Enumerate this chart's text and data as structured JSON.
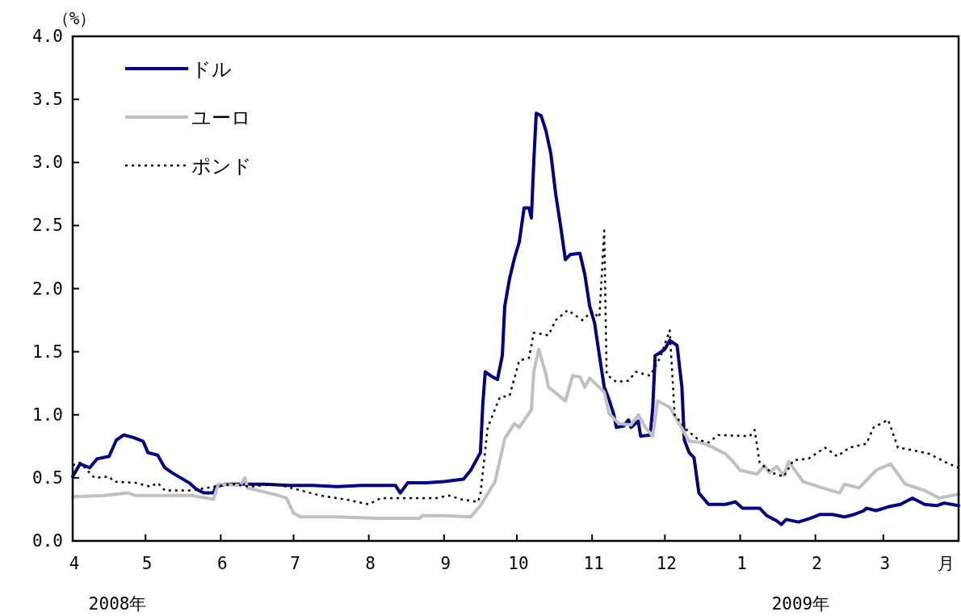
{
  "chart_data": {
    "type": "line",
    "ylabel": "（%）",
    "xlabel": "月",
    "annotations": [
      "2008年",
      "2009年"
    ],
    "xlim": [
      "2008-04-01",
      "2009-04-01"
    ],
    "xticks": [
      {
        "value": "2008-04-01",
        "label": "4"
      },
      {
        "value": "2008-05-01",
        "label": "5"
      },
      {
        "value": "2008-06-01",
        "label": "6"
      },
      {
        "value": "2008-07-01",
        "label": "7"
      },
      {
        "value": "2008-08-01",
        "label": "8"
      },
      {
        "value": "2008-09-01",
        "label": "9"
      },
      {
        "value": "2008-10-01",
        "label": "10"
      },
      {
        "value": "2008-11-01",
        "label": "11"
      },
      {
        "value": "2008-12-01",
        "label": "12"
      },
      {
        "value": "2009-01-01",
        "label": "1"
      },
      {
        "value": "2009-02-01",
        "label": "2"
      },
      {
        "value": "2009-03-01",
        "label": "3"
      }
    ],
    "ylim": [
      0,
      4
    ],
    "yticks": [
      {
        "value": 0,
        "label": "0.0"
      },
      {
        "value": 0.5,
        "label": "0.5"
      },
      {
        "value": 1,
        "label": "1.0"
      },
      {
        "value": 1.5,
        "label": "1.5"
      },
      {
        "value": 2,
        "label": "2.0"
      },
      {
        "value": 2.5,
        "label": "2.5"
      },
      {
        "value": 3,
        "label": "3.0"
      },
      {
        "value": 3.5,
        "label": "3.5"
      },
      {
        "value": 4,
        "label": "4.0"
      }
    ],
    "grid": false,
    "legend": "top left",
    "series": [
      {
        "name": "ドル",
        "color": "#000080",
        "line_style": "solid",
        "x": [
          "2008-04-01",
          "2008-04-04",
          "2008-04-08",
          "2008-04-11",
          "2008-04-16",
          "2008-04-19",
          "2008-04-22",
          "2008-04-26",
          "2008-04-30",
          "2008-05-02",
          "2008-05-06",
          "2008-05-09",
          "2008-05-12",
          "2008-05-19",
          "2008-05-22",
          "2008-05-25",
          "2008-05-29",
          "2008-05-30",
          "2008-06-03",
          "2008-06-09",
          "2008-06-19",
          "2008-06-29",
          "2008-07-09",
          "2008-07-19",
          "2008-07-29",
          "2008-08-12",
          "2008-08-14",
          "2008-08-17",
          "2008-08-25",
          "2008-09-01",
          "2008-09-09",
          "2008-09-12",
          "2008-09-16",
          "2008-09-17",
          "2008-09-18",
          "2008-09-21",
          "2008-09-23",
          "2008-09-25",
          "2008-09-26",
          "2008-09-28",
          "2008-09-30",
          "2008-10-02",
          "2008-10-04",
          "2008-10-06",
          "2008-10-07",
          "2008-10-08",
          "2008-10-09",
          "2008-10-11",
          "2008-10-13",
          "2008-10-15",
          "2008-10-17",
          "2008-10-19",
          "2008-10-21",
          "2008-10-23",
          "2008-10-27",
          "2008-10-29",
          "2008-10-31",
          "2008-11-02",
          "2008-11-04",
          "2008-11-06",
          "2008-11-08",
          "2008-11-10",
          "2008-11-11",
          "2008-11-14",
          "2008-11-16",
          "2008-11-17",
          "2008-11-20",
          "2008-11-21",
          "2008-11-25",
          "2008-11-26",
          "2008-11-27",
          "2008-11-28",
          "2008-12-01",
          "2008-12-03",
          "2008-12-06",
          "2008-12-08",
          "2008-12-09",
          "2008-12-11",
          "2008-12-13",
          "2008-12-15",
          "2008-12-19",
          "2008-12-26",
          "2008-12-30",
          "2009-01-02",
          "2009-01-09",
          "2009-01-12",
          "2009-01-16",
          "2009-01-18",
          "2009-01-20",
          "2009-01-25",
          "2009-01-30",
          "2009-02-03",
          "2009-02-08",
          "2009-02-13",
          "2009-02-17",
          "2009-02-21",
          "2009-02-22",
          "2009-02-26",
          "2009-03-03",
          "2009-03-08",
          "2009-03-13",
          "2009-03-18",
          "2009-03-23",
          "2009-03-26",
          "2009-04-01"
        ],
        "values": [
          0.51,
          0.61,
          0.58,
          0.65,
          0.67,
          0.8,
          0.84,
          0.82,
          0.79,
          0.7,
          0.68,
          0.58,
          0.54,
          0.46,
          0.41,
          0.38,
          0.38,
          0.43,
          0.45,
          0.45,
          0.45,
          0.44,
          0.44,
          0.43,
          0.44,
          0.44,
          0.38,
          0.46,
          0.46,
          0.47,
          0.49,
          0.56,
          0.7,
          1.09,
          1.34,
          1.3,
          1.28,
          1.47,
          1.86,
          2.08,
          2.24,
          2.37,
          2.64,
          2.64,
          2.56,
          3.01,
          3.39,
          3.37,
          3.25,
          3.07,
          2.75,
          2.5,
          2.23,
          2.27,
          2.28,
          2.11,
          1.86,
          1.73,
          1.47,
          1.22,
          1.12,
          1.0,
          0.9,
          0.91,
          0.96,
          0.9,
          0.95,
          0.83,
          0.84,
          1.06,
          1.47,
          1.48,
          1.52,
          1.59,
          1.55,
          1.22,
          0.8,
          0.7,
          0.66,
          0.38,
          0.29,
          0.29,
          0.31,
          0.26,
          0.26,
          0.2,
          0.16,
          0.13,
          0.17,
          0.15,
          0.18,
          0.21,
          0.21,
          0.19,
          0.21,
          0.24,
          0.26,
          0.24,
          0.27,
          0.29,
          0.34,
          0.29,
          0.28,
          0.3,
          0.28
        ]
      },
      {
        "name": "ユーロ",
        "color": "#c0c0c0",
        "line_style": "solid",
        "x": [
          "2008-04-01",
          "2008-04-14",
          "2008-04-24",
          "2008-04-27",
          "2008-05-07",
          "2008-05-20",
          "2008-05-29",
          "2008-05-31",
          "2008-06-09",
          "2008-06-11",
          "2008-06-12",
          "2008-06-23",
          "2008-06-28",
          "2008-07-01",
          "2008-07-04",
          "2008-07-19",
          "2008-08-05",
          "2008-08-22",
          "2008-08-23",
          "2008-09-01",
          "2008-09-12",
          "2008-09-16",
          "2008-09-22",
          "2008-09-26",
          "2008-09-30",
          "2008-10-02",
          "2008-10-07",
          "2008-10-08",
          "2008-10-10",
          "2008-10-13",
          "2008-10-14",
          "2008-10-21",
          "2008-10-24",
          "2008-10-27",
          "2008-10-29",
          "2008-10-31",
          "2008-11-06",
          "2008-11-08",
          "2008-11-12",
          "2008-11-17",
          "2008-11-20",
          "2008-11-23",
          "2008-11-26",
          "2008-11-28",
          "2008-12-03",
          "2008-12-06",
          "2008-12-11",
          "2008-12-16",
          "2008-12-21",
          "2008-12-26",
          "2008-12-29",
          "2009-01-01",
          "2009-01-08",
          "2009-01-11",
          "2009-01-13",
          "2009-01-16",
          "2009-01-19",
          "2009-01-21",
          "2009-01-27",
          "2009-02-04",
          "2009-02-11",
          "2009-02-13",
          "2009-02-19",
          "2009-02-26",
          "2009-03-04",
          "2009-03-10",
          "2009-03-18",
          "2009-03-24",
          "2009-04-01"
        ],
        "values": [
          0.35,
          0.36,
          0.38,
          0.36,
          0.36,
          0.36,
          0.33,
          0.45,
          0.44,
          0.5,
          0.42,
          0.37,
          0.34,
          0.22,
          0.19,
          0.19,
          0.18,
          0.18,
          0.2,
          0.2,
          0.19,
          0.28,
          0.47,
          0.81,
          0.93,
          0.9,
          1.04,
          1.34,
          1.52,
          1.32,
          1.22,
          1.11,
          1.31,
          1.3,
          1.22,
          1.29,
          1.18,
          1.01,
          0.93,
          0.92,
          1.0,
          0.9,
          0.83,
          1.11,
          1.06,
          0.96,
          0.79,
          0.78,
          0.74,
          0.69,
          0.63,
          0.56,
          0.53,
          0.6,
          0.54,
          0.59,
          0.52,
          0.63,
          0.47,
          0.42,
          0.38,
          0.45,
          0.42,
          0.56,
          0.61,
          0.45,
          0.4,
          0.34,
          0.37
        ]
      },
      {
        "name": "ポンド",
        "color": "#000000",
        "line_style": "dotted",
        "x": [
          "2008-04-01",
          "2008-04-04",
          "2008-04-10",
          "2008-04-16",
          "2008-04-18",
          "2008-04-27",
          "2008-05-03",
          "2008-05-06",
          "2008-05-09",
          "2008-05-20",
          "2008-05-29",
          "2008-06-06",
          "2008-06-13",
          "2008-06-24",
          "2008-07-04",
          "2008-07-12",
          "2008-07-22",
          "2008-08-01",
          "2008-08-06",
          "2008-08-15",
          "2008-08-29",
          "2008-09-03",
          "2008-09-08",
          "2008-09-15",
          "2008-09-16",
          "2008-09-19",
          "2008-09-24",
          "2008-09-28",
          "2008-10-02",
          "2008-10-06",
          "2008-10-08",
          "2008-10-14",
          "2008-10-17",
          "2008-10-22",
          "2008-10-28",
          "2008-11-01",
          "2008-11-04",
          "2008-11-06",
          "2008-11-07",
          "2008-11-11",
          "2008-11-16",
          "2008-11-19",
          "2008-11-25",
          "2008-11-29",
          "2008-12-03",
          "2008-12-05",
          "2008-12-10",
          "2008-12-15",
          "2008-12-19",
          "2008-12-23",
          "2009-01-05",
          "2009-01-07",
          "2009-01-09",
          "2009-01-14",
          "2009-01-19",
          "2009-01-23",
          "2009-01-29",
          "2009-02-05",
          "2009-02-10",
          "2009-02-15",
          "2009-02-22",
          "2009-02-25",
          "2009-03-03",
          "2009-03-07",
          "2009-03-13",
          "2009-03-20",
          "2009-03-27",
          "2009-04-01"
        ],
        "values": [
          0.6,
          0.62,
          0.5,
          0.51,
          0.47,
          0.46,
          0.43,
          0.46,
          0.4,
          0.4,
          0.43,
          0.45,
          0.43,
          0.45,
          0.4,
          0.36,
          0.33,
          0.29,
          0.34,
          0.34,
          0.34,
          0.36,
          0.33,
          0.31,
          0.37,
          0.9,
          1.14,
          1.15,
          1.43,
          1.45,
          1.65,
          1.63,
          1.75,
          1.83,
          1.75,
          1.82,
          1.77,
          2.46,
          1.32,
          1.26,
          1.27,
          1.34,
          1.31,
          1.45,
          1.67,
          1.0,
          0.88,
          0.8,
          0.78,
          0.84,
          0.83,
          0.88,
          0.62,
          0.54,
          0.51,
          0.64,
          0.65,
          0.74,
          0.67,
          0.74,
          0.77,
          0.9,
          0.96,
          0.74,
          0.72,
          0.69,
          0.62,
          0.58
        ]
      }
    ]
  }
}
